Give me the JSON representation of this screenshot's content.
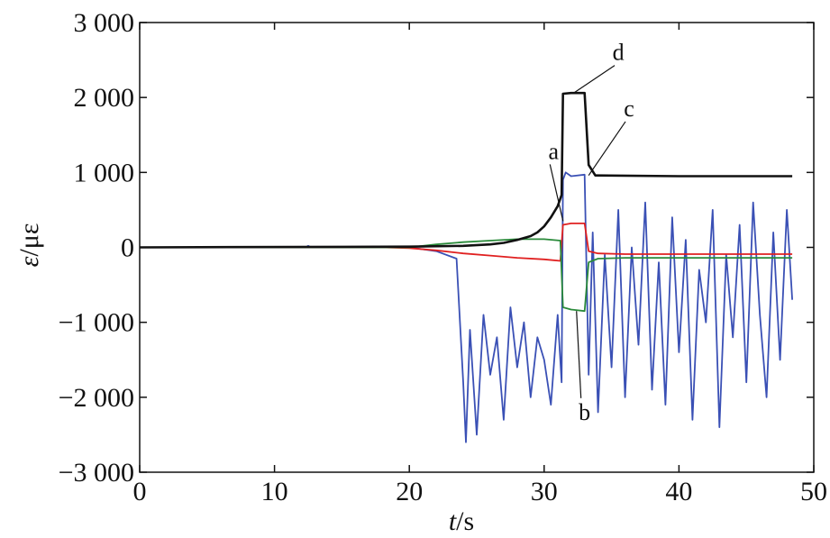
{
  "chart_data": {
    "type": "line",
    "xlabel_var": "t",
    "xlabel_unit": "/s",
    "ylabel_var": "ε",
    "ylabel_unit": "/με",
    "xlim": [
      0,
      50
    ],
    "ylim": [
      -3000,
      3000
    ],
    "x_ticks": [
      0,
      10,
      20,
      30,
      40,
      50
    ],
    "y_ticks": [
      3000,
      2000,
      1000,
      0,
      -1000,
      -2000,
      -3000
    ],
    "x_tick_labels": [
      "0",
      "10",
      "20",
      "30",
      "40",
      "50"
    ],
    "y_tick_labels": [
      "3 000",
      "2 000",
      "1 000",
      "0",
      "−1 000",
      "−2 000",
      "−3 000"
    ],
    "grid": false,
    "legend": "none",
    "series": [
      {
        "name": "a",
        "color": "#e02020",
        "x": [
          0,
          18,
          20,
          22,
          24,
          26,
          28,
          30,
          31.2,
          31.4,
          32,
          33,
          33.3,
          34,
          36,
          40,
          45,
          48.4
        ],
        "values": [
          0,
          0,
          -10,
          -40,
          -80,
          -110,
          -140,
          -160,
          -180,
          300,
          320,
          320,
          -50,
          -80,
          -90,
          -90,
          -90,
          -90
        ]
      },
      {
        "name": "b",
        "color": "#2a8a3a",
        "x": [
          0,
          20,
          22,
          24,
          26,
          28,
          30,
          31.2,
          31.4,
          32,
          33,
          33.3,
          34,
          36,
          40,
          45,
          48.4
        ],
        "values": [
          0,
          0,
          40,
          70,
          90,
          110,
          110,
          90,
          -800,
          -830,
          -850,
          -200,
          -150,
          -140,
          -140,
          -140,
          -140
        ]
      },
      {
        "name": "c",
        "color": "#3a50b5",
        "x": [
          0,
          12.3,
          12.5,
          12.7,
          14,
          20,
          22,
          23.5,
          24,
          24.2,
          24.5,
          25,
          25.5,
          26,
          26.5,
          27,
          27.5,
          28,
          28.5,
          29,
          29.5,
          30,
          30.5,
          31,
          31.3,
          31.4,
          31.6,
          32,
          33,
          33.3,
          33.6,
          34,
          34.5,
          35,
          35.5,
          36,
          36.5,
          37,
          37.5,
          38,
          38.5,
          39,
          39.5,
          40,
          40.5,
          41,
          41.5,
          42,
          42.5,
          43,
          43.5,
          44,
          44.5,
          45,
          45.5,
          46,
          46.5,
          47,
          47.5,
          48,
          48.4
        ],
        "values": [
          0,
          0,
          20,
          0,
          0,
          0,
          -50,
          -150,
          -1800,
          -2600,
          -1100,
          -2500,
          -900,
          -1700,
          -1200,
          -2300,
          -800,
          -1600,
          -1000,
          -2000,
          -1200,
          -1500,
          -2100,
          -900,
          -1800,
          900,
          1000,
          950,
          970,
          -1700,
          200,
          -2200,
          -100,
          -1600,
          500,
          -2000,
          0,
          -1300,
          600,
          -1900,
          -200,
          -2100,
          400,
          -1400,
          100,
          -2300,
          -300,
          -1000,
          500,
          -2400,
          -100,
          -1200,
          300,
          -1800,
          600,
          -900,
          -2000,
          200,
          -1500,
          500,
          -700
        ]
      },
      {
        "name": "d",
        "color": "#111111",
        "x": [
          0,
          20,
          24,
          26,
          27,
          28,
          29,
          29.5,
          30,
          30.5,
          31,
          31.3,
          31.4,
          32,
          33,
          33.3,
          33.8,
          34,
          40,
          45,
          48.4
        ],
        "values": [
          0,
          10,
          20,
          40,
          60,
          100,
          150,
          200,
          280,
          400,
          550,
          700,
          2050,
          2060,
          2060,
          1100,
          960,
          960,
          950,
          950,
          950
        ]
      }
    ],
    "annotations": [
      {
        "text": "a",
        "x": 30.7,
        "y": 1180
      },
      {
        "text": "b",
        "x": 33.0,
        "y": -2300
      },
      {
        "text": "c",
        "x": 36.3,
        "y": 1750
      },
      {
        "text": "d",
        "x": 35.5,
        "y": 2500
      }
    ]
  }
}
